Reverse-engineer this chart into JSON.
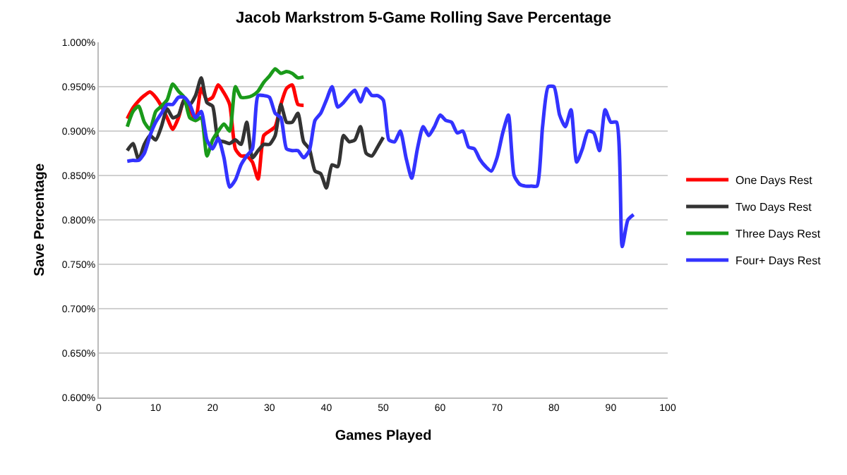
{
  "chart_data": {
    "type": "line",
    "title": "Jacob Markstrom 5-Game Rolling Save Percentage",
    "xlabel": "Games Played",
    "ylabel": "Save Percentage",
    "xlim": [
      0,
      100
    ],
    "xticks": [
      0,
      10,
      20,
      30,
      40,
      50,
      60,
      70,
      80,
      90,
      100
    ],
    "ylim": [
      0.6,
      1.0
    ],
    "yticks": [
      {
        "value": 0.6,
        "label": "0.600%"
      },
      {
        "value": 0.65,
        "label": "0.650%"
      },
      {
        "value": 0.7,
        "label": "0.700%"
      },
      {
        "value": 0.75,
        "label": "0.750%"
      },
      {
        "value": 0.8,
        "label": "0.800%"
      },
      {
        "value": 0.85,
        "label": "0.850%"
      },
      {
        "value": 0.9,
        "label": "0.900%"
      },
      {
        "value": 0.95,
        "label": "0.950%"
      },
      {
        "value": 1.0,
        "label": "1.000%"
      }
    ],
    "grid": "y",
    "legend": "right",
    "marker": "none",
    "line_style": "solid",
    "series": [
      {
        "name": "One Days Rest",
        "color": "#ff0000",
        "x": [
          5,
          6,
          7,
          8,
          9,
          10,
          11,
          12,
          13,
          14,
          15,
          16,
          17,
          18,
          19,
          20,
          21,
          22,
          23,
          24,
          25,
          26,
          27,
          28,
          29,
          30,
          31,
          32,
          33,
          34,
          35,
          36
        ],
        "values": [
          0.914,
          0.926,
          0.934,
          0.94,
          0.944,
          0.938,
          0.928,
          0.915,
          0.902,
          0.915,
          0.935,
          0.925,
          0.912,
          0.948,
          0.935,
          0.938,
          0.952,
          0.943,
          0.93,
          0.88,
          0.872,
          0.872,
          0.865,
          0.846,
          0.895,
          0.9,
          0.905,
          0.93,
          0.948,
          0.952,
          0.93,
          0.929
        ]
      },
      {
        "name": "Two Days Rest",
        "color": "#333333",
        "x": [
          5,
          6,
          7,
          8,
          9,
          10,
          11,
          12,
          13,
          14,
          15,
          16,
          17,
          18,
          19,
          20,
          21,
          22,
          23,
          24,
          25,
          26,
          27,
          28,
          29,
          30,
          31,
          32,
          33,
          34,
          35,
          36,
          37,
          38,
          39,
          40,
          41,
          42,
          43,
          44,
          45,
          46,
          47,
          48,
          49,
          50
        ],
        "values": [
          0.878,
          0.886,
          0.868,
          0.885,
          0.895,
          0.89,
          0.905,
          0.925,
          0.915,
          0.918,
          0.935,
          0.93,
          0.94,
          0.96,
          0.932,
          0.928,
          0.89,
          0.888,
          0.886,
          0.89,
          0.885,
          0.91,
          0.87,
          0.878,
          0.885,
          0.885,
          0.895,
          0.93,
          0.91,
          0.91,
          0.92,
          0.888,
          0.88,
          0.855,
          0.852,
          0.836,
          0.862,
          0.86,
          0.895,
          0.888,
          0.89,
          0.905,
          0.875,
          0.872,
          0.882,
          0.893
        ]
      },
      {
        "name": "Three Days Rest",
        "color": "#1a9a1a",
        "x": [
          5,
          6,
          7,
          8,
          9,
          10,
          11,
          12,
          13,
          14,
          15,
          16,
          17,
          18,
          19,
          20,
          21,
          22,
          23,
          24,
          25,
          26,
          27,
          28,
          29,
          30,
          31,
          32,
          33,
          34,
          35,
          36
        ],
        "values": [
          0.905,
          0.922,
          0.928,
          0.91,
          0.902,
          0.922,
          0.928,
          0.935,
          0.953,
          0.945,
          0.938,
          0.915,
          0.912,
          0.915,
          0.872,
          0.89,
          0.9,
          0.908,
          0.9,
          0.95,
          0.938,
          0.938,
          0.94,
          0.945,
          0.955,
          0.962,
          0.97,
          0.965,
          0.967,
          0.965,
          0.96,
          0.961
        ]
      },
      {
        "name": "Four+ Days Rest",
        "color": "#3333ff",
        "x": [
          5,
          6,
          7,
          8,
          9,
          10,
          11,
          12,
          13,
          14,
          15,
          16,
          17,
          18,
          19,
          20,
          21,
          22,
          23,
          24,
          25,
          26,
          27,
          28,
          29,
          30,
          31,
          32,
          33,
          34,
          35,
          36,
          37,
          38,
          39,
          40,
          41,
          42,
          43,
          44,
          45,
          46,
          47,
          48,
          49,
          50,
          51,
          52,
          53,
          54,
          55,
          56,
          57,
          58,
          59,
          60,
          61,
          62,
          63,
          64,
          65,
          66,
          67,
          68,
          69,
          70,
          71,
          72,
          73,
          74,
          75,
          76,
          77,
          78,
          79,
          80,
          81,
          82,
          83,
          84,
          85,
          86,
          87,
          88,
          89,
          90,
          91,
          92,
          93,
          94
        ],
        "values": [
          0.866,
          0.867,
          0.867,
          0.875,
          0.895,
          0.91,
          0.92,
          0.93,
          0.93,
          0.938,
          0.938,
          0.93,
          0.915,
          0.922,
          0.89,
          0.88,
          0.892,
          0.87,
          0.837,
          0.845,
          0.862,
          0.872,
          0.88,
          0.94,
          0.94,
          0.938,
          0.92,
          0.915,
          0.88,
          0.878,
          0.878,
          0.87,
          0.878,
          0.912,
          0.92,
          0.935,
          0.95,
          0.927,
          0.932,
          0.94,
          0.946,
          0.933,
          0.948,
          0.94,
          0.94,
          0.935,
          0.89,
          0.888,
          0.9,
          0.87,
          0.847,
          0.88,
          0.905,
          0.895,
          0.905,
          0.918,
          0.912,
          0.91,
          0.898,
          0.9,
          0.882,
          0.88,
          0.868,
          0.86,
          0.855,
          0.87,
          0.898,
          0.918,
          0.85,
          0.84,
          0.838,
          0.838,
          0.838,
          0.905,
          0.95,
          0.95,
          0.918,
          0.905,
          0.924,
          0.865,
          0.88,
          0.9,
          0.898,
          0.878,
          0.924,
          0.91,
          0.91,
          0.77,
          0.8,
          0.806
        ]
      }
    ]
  }
}
